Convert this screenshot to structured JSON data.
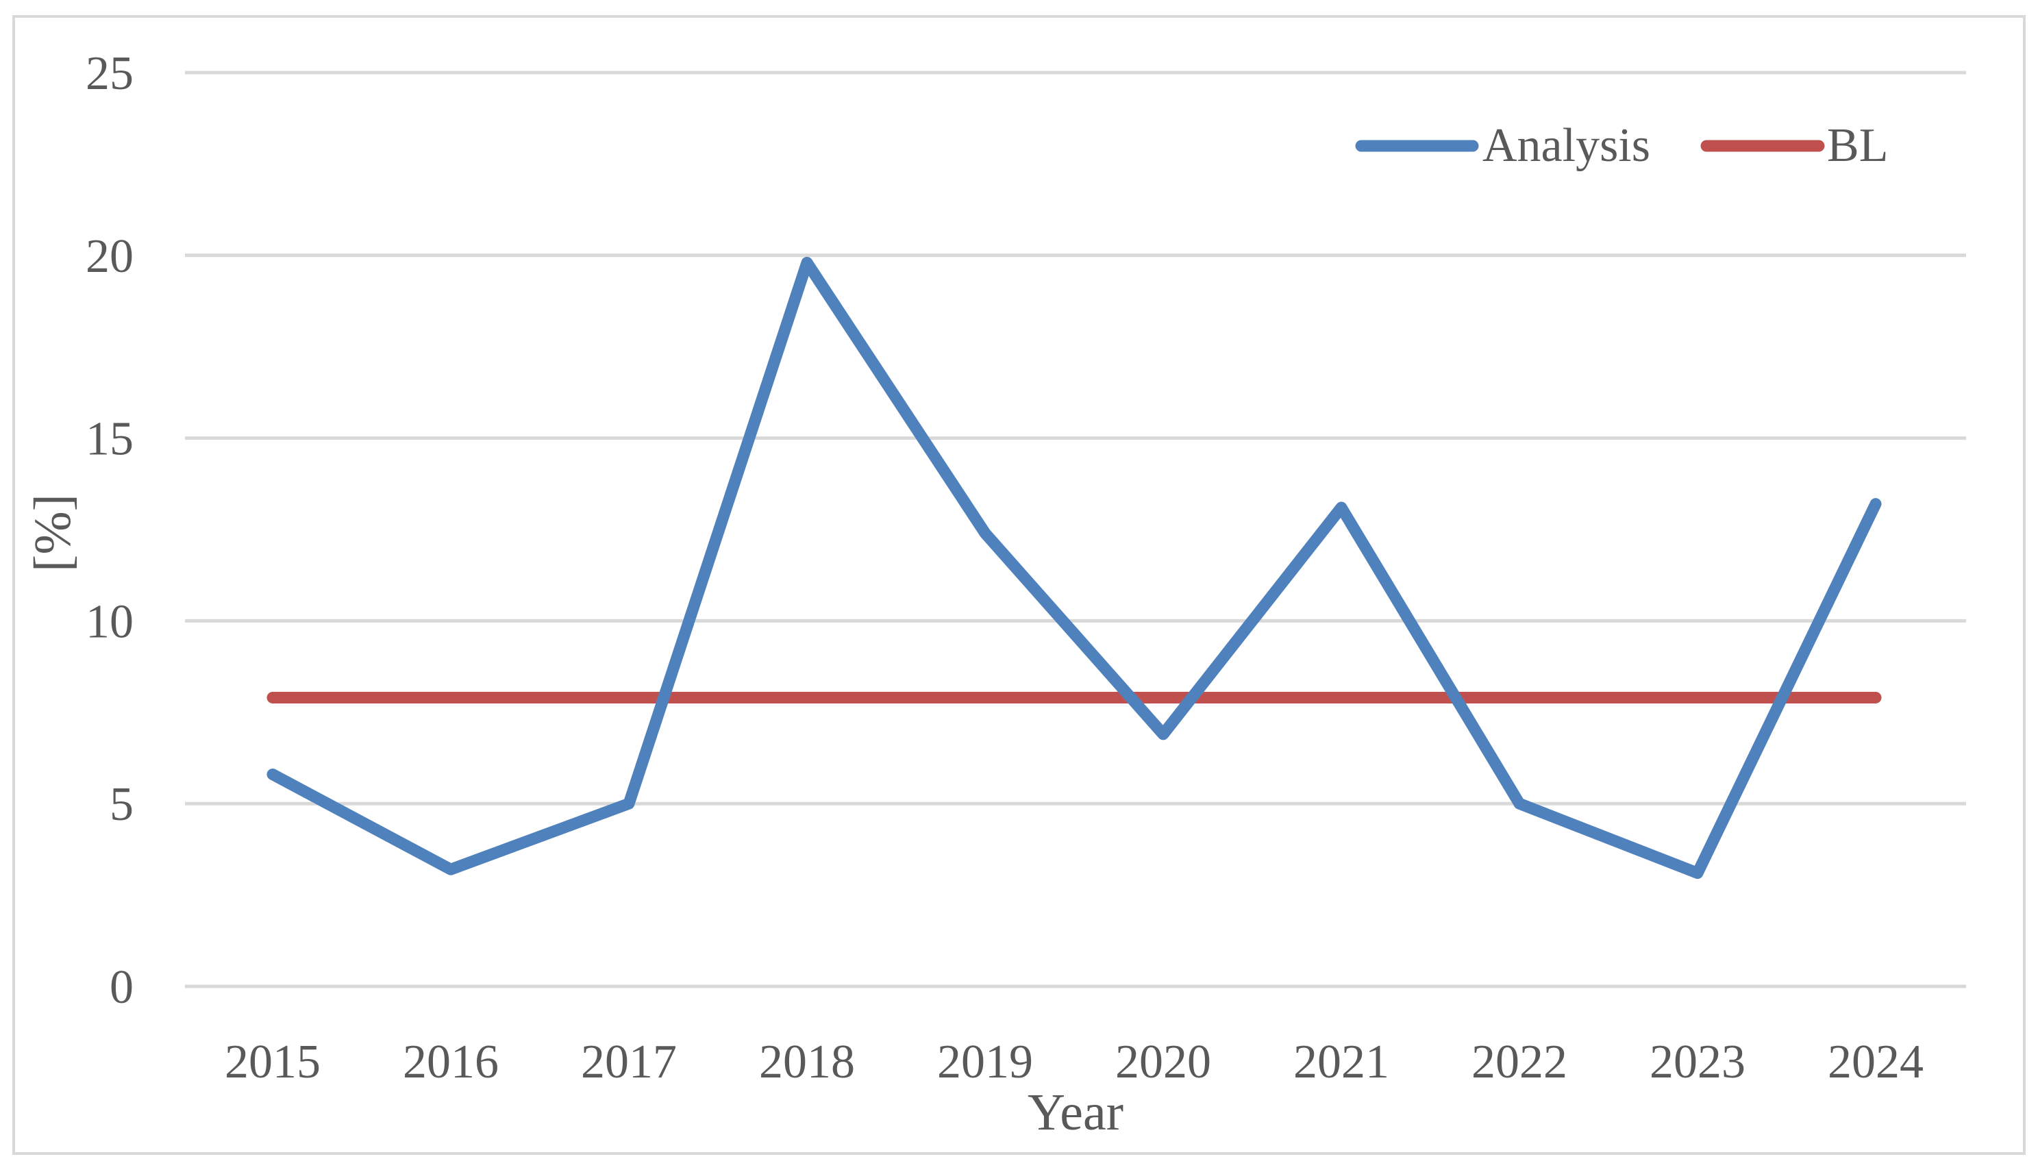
{
  "chart_data": {
    "type": "line",
    "title": "",
    "xlabel": "Year",
    "ylabel": "[%]",
    "categories": [
      "2015",
      "2016",
      "2017",
      "2018",
      "2019",
      "2020",
      "2021",
      "2022",
      "2023",
      "2024"
    ],
    "ylim": [
      0,
      25
    ],
    "yticks": [
      0,
      5,
      10,
      15,
      20,
      25
    ],
    "grid": true,
    "legend_position": "top-right",
    "series": [
      {
        "name": "Analysis",
        "color": "#4F81BD",
        "values": [
          5.8,
          3.2,
          5.0,
          19.8,
          12.4,
          6.9,
          13.1,
          5.0,
          3.1,
          13.2
        ]
      },
      {
        "name": "BL",
        "color": "#C0504D",
        "values": [
          7.9,
          7.9,
          7.9,
          7.9,
          7.9,
          7.9,
          7.9,
          7.9,
          7.9,
          7.9
        ]
      }
    ]
  }
}
